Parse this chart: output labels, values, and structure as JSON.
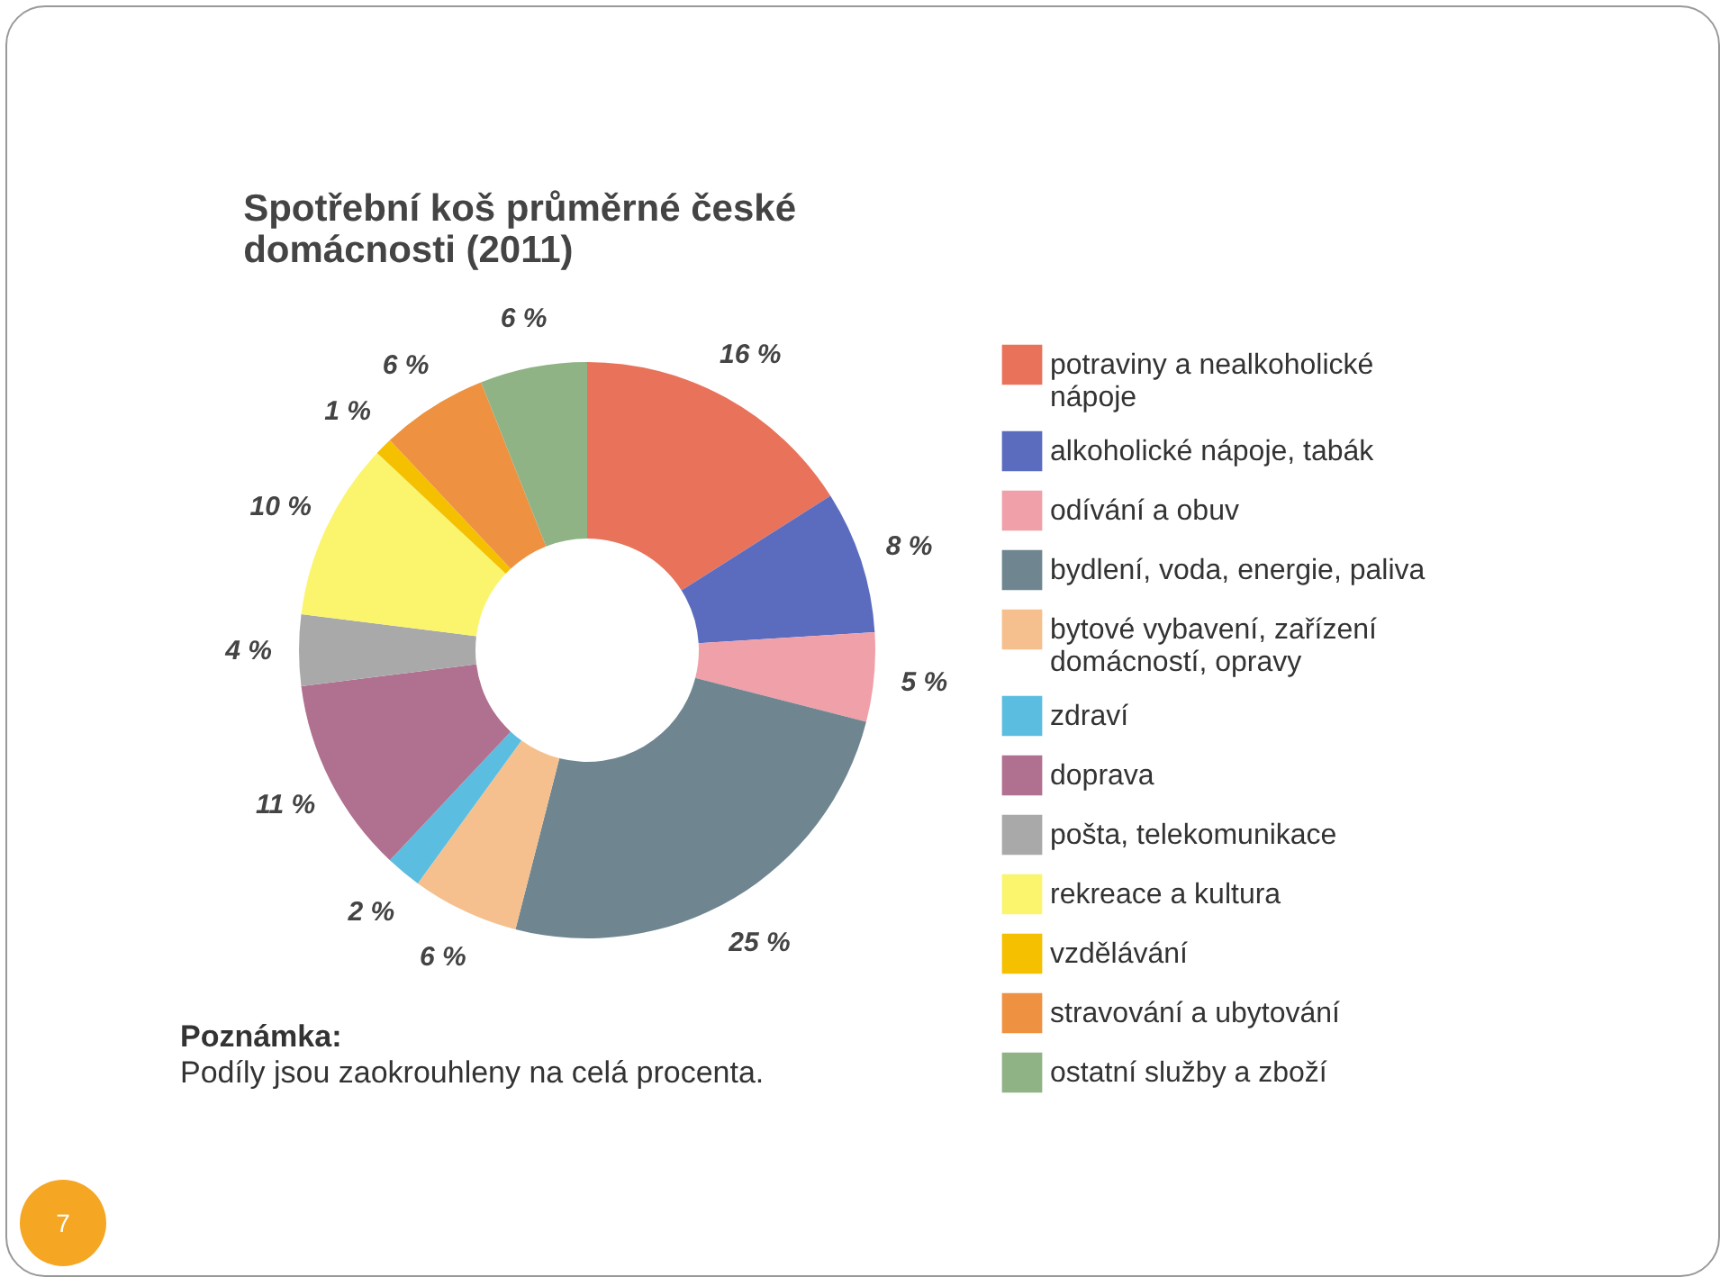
{
  "chart_data": {
    "type": "donut",
    "title": "Spotřební koš průměrné české domácnosti (2011)",
    "categories": [
      "potraviny a nealkoholické nápoje",
      "alkoholické nápoje, tabák",
      "odívání a obuv",
      "bydlení, voda, energie, paliva",
      "bytové vybavení, zařízení domácností, opravy",
      "zdraví",
      "doprava",
      "pošta, telekomunikace",
      "rekreace a kultura",
      "vzdělávání",
      "stravování a ubytování",
      "ostatní služby a zboží"
    ],
    "values": [
      16,
      8,
      5,
      25,
      6,
      2,
      11,
      4,
      10,
      1,
      6,
      6
    ],
    "colors": [
      "#e8735a",
      "#5b6cbf",
      "#f0a0a8",
      "#6f8690",
      "#f5c08e",
      "#5bbde0",
      "#b0708f",
      "#a9a9a9",
      "#fbf56e",
      "#f5c000",
      "#ee9140",
      "#8fb384"
    ],
    "value_labels": [
      "16 %",
      "8 %",
      "5 %",
      "25 %",
      "6 %",
      "2 %",
      "11 %",
      "4 %",
      "10 %",
      "1 %",
      "6 %",
      "6 %"
    ],
    "legend": "right",
    "annotations": [
      "Poznámka:",
      "Podíly jsou zaokrouhleny na celá procenta.",
      "7"
    ]
  }
}
